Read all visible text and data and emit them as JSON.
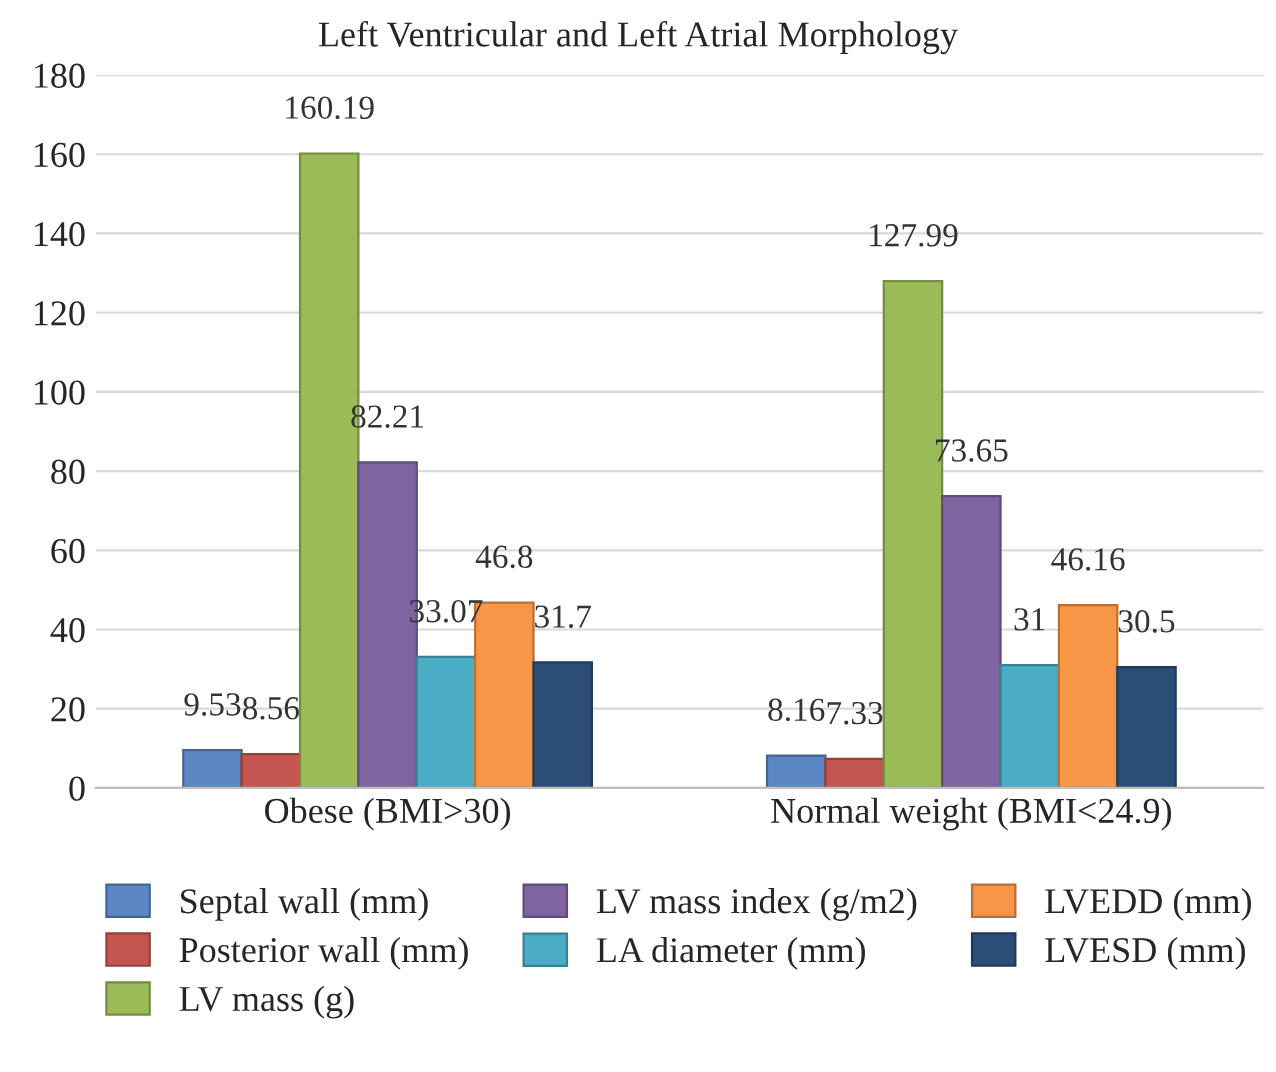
{
  "chart_data": {
    "type": "bar",
    "title": "Left Ventricular and Left Atrial Morphology",
    "categories": [
      "Obese (BMI>30)",
      "Normal weight (BMI<24.9)"
    ],
    "series": [
      {
        "name": "Septal wall (mm)",
        "color": "#5b87c5",
        "values": [
          9.53,
          8.16
        ]
      },
      {
        "name": "Posterior wall (mm)",
        "color": "#c5554f",
        "values": [
          8.56,
          7.33
        ]
      },
      {
        "name": "LV mass (g)",
        "color": "#9bbb59",
        "values": [
          160.19,
          127.99
        ]
      },
      {
        "name": "LV mass index (g/m2)",
        "color": "#8064a2",
        "values": [
          82.21,
          73.65
        ]
      },
      {
        "name": "LA diameter (mm)",
        "color": "#4bacc6",
        "values": [
          33.07,
          31
        ]
      },
      {
        "name": "LVEDD (mm)",
        "color": "#f79646",
        "values": [
          46.8,
          46.16
        ]
      },
      {
        "name": "LVESD (mm)",
        "color": "#2c4d75",
        "values": [
          31.7,
          30.5
        ]
      }
    ],
    "ylim": [
      0,
      180
    ],
    "yticks": [
      0,
      20,
      40,
      60,
      80,
      100,
      120,
      140,
      160,
      180
    ],
    "grid": "y",
    "legend": "bottom",
    "data_labels": true
  }
}
